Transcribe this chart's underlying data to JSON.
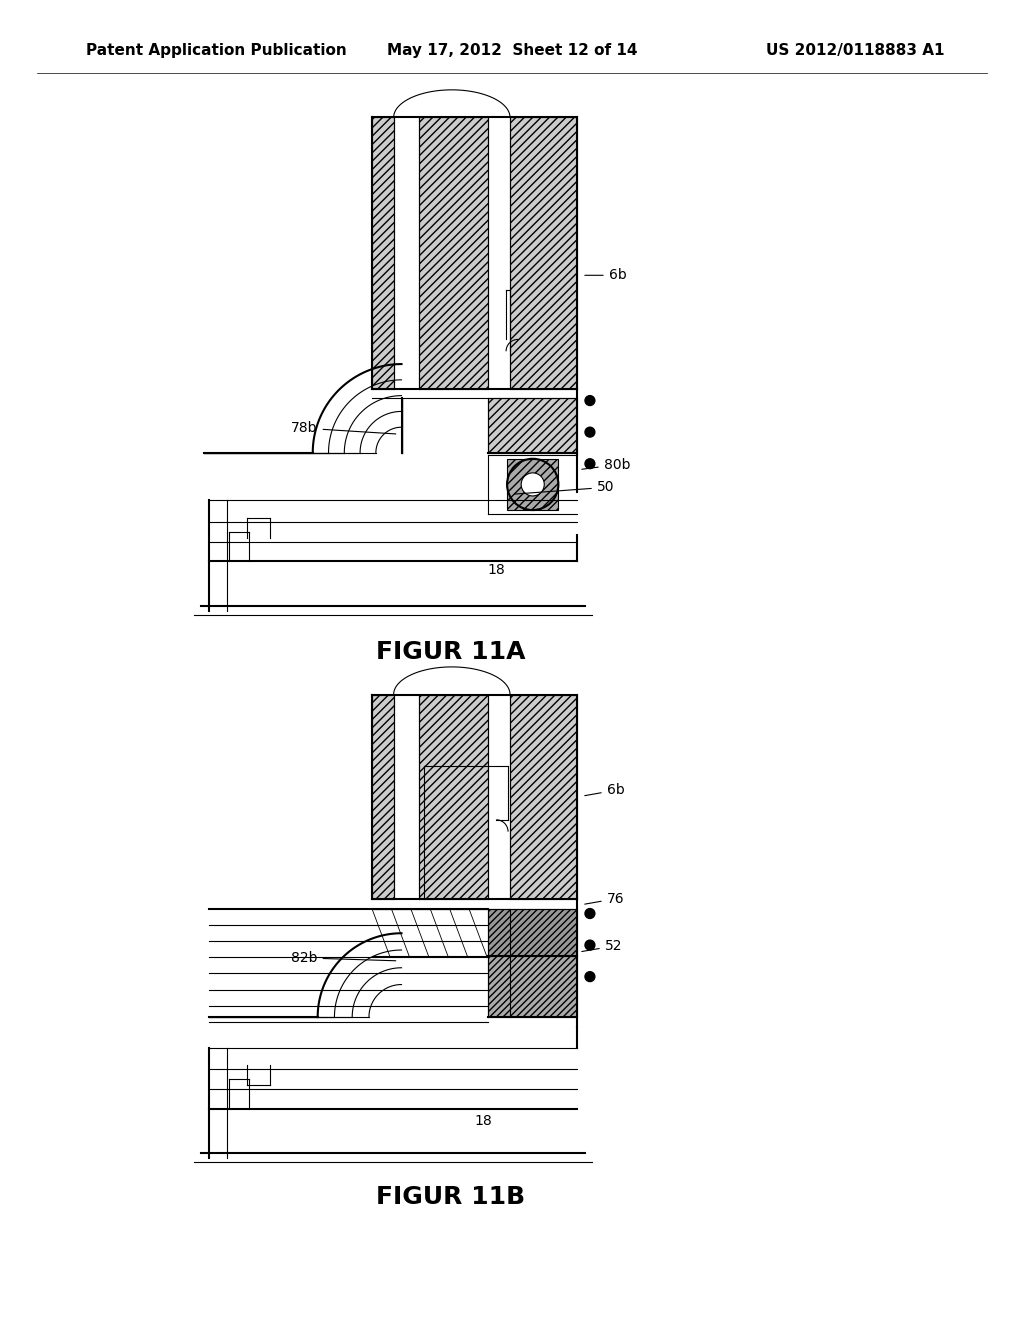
{
  "background_color": "#ffffff",
  "header_left": "Patent Application Publication",
  "header_center": "May 17, 2012  Sheet 12 of 14",
  "header_right": "US 2012/0118883 A1",
  "fig11a_caption": "FIGUR 11A",
  "fig11b_caption": "FIGUR 11B",
  "caption_fontsize": 18,
  "caption_fontweight": "bold",
  "header_fontsize": 11,
  "header_fontweight": "bold",
  "label_fontsize": 10,
  "fig_width": 10.24,
  "fig_height": 13.2
}
